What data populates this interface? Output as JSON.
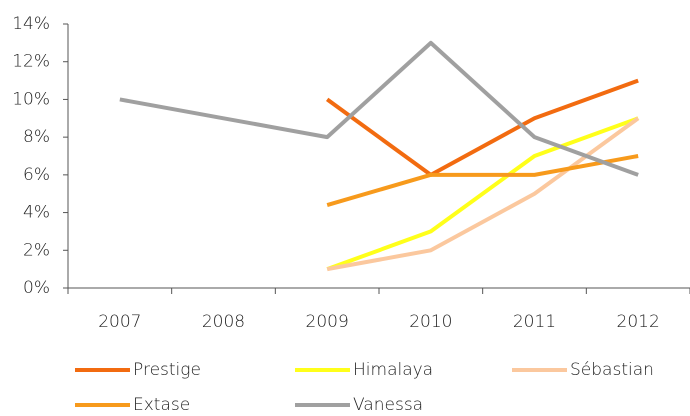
{
  "chart_data": {
    "type": "line",
    "categories": [
      "2007",
      "2008",
      "2009",
      "2010",
      "2011",
      "2012"
    ],
    "series": [
      {
        "name": "Prestige",
        "color": "#f26b10",
        "values": [
          null,
          null,
          10,
          6,
          9,
          11
        ]
      },
      {
        "name": "Himalaya",
        "color": "#ffff1a",
        "values": [
          null,
          null,
          1,
          3,
          7,
          9
        ]
      },
      {
        "name": "Sébastian",
        "color": "#fbc89e",
        "values": [
          null,
          null,
          1,
          2,
          5,
          9
        ]
      },
      {
        "name": "Extase",
        "color": "#f79a1c",
        "values": [
          null,
          null,
          4.4,
          6,
          6,
          7
        ]
      },
      {
        "name": "Vanessa",
        "color": "#a0a0a0",
        "values": [
          10,
          9,
          8,
          13,
          8,
          6
        ]
      }
    ],
    "ylim": [
      0,
      14
    ],
    "yticks": [
      {
        "value": 0,
        "label": "0%"
      },
      {
        "value": 2,
        "label": "2%"
      },
      {
        "value": 4,
        "label": "4%"
      },
      {
        "value": 6,
        "label": "6%"
      },
      {
        "value": 8,
        "label": "8%"
      },
      {
        "value": 10,
        "label": "10%"
      },
      {
        "value": 12,
        "label": "12%"
      },
      {
        "value": 14,
        "label": "14%"
      }
    ],
    "grid": false
  }
}
